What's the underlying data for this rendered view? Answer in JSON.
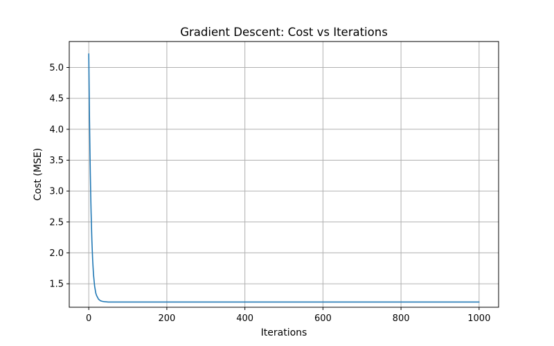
{
  "chart_data": {
    "type": "line",
    "title": "Gradient Descent: Cost vs Iterations",
    "xlabel": "Iterations",
    "ylabel": "Cost (MSE)",
    "xlim": [
      -50,
      1050
    ],
    "ylim": [
      1.12,
      5.42
    ],
    "grid": true,
    "x_ticks": [
      0,
      200,
      400,
      600,
      800,
      1000
    ],
    "x_tick_labels": [
      "0",
      "200",
      "400",
      "600",
      "800",
      "1000"
    ],
    "y_ticks": [
      1.5,
      2.0,
      2.5,
      3.0,
      3.5,
      4.0,
      4.5,
      5.0
    ],
    "y_tick_labels": [
      "1.5",
      "2.0",
      "2.5",
      "3.0",
      "3.5",
      "4.0",
      "4.5",
      "5.0"
    ],
    "series": [
      {
        "color": "#1f77b4",
        "x": [
          0,
          1,
          2,
          3,
          4,
          5,
          6,
          8,
          10,
          12,
          15,
          18,
          20,
          25,
          30,
          35,
          40,
          50,
          60,
          80,
          100,
          200,
          300,
          400,
          500,
          600,
          700,
          800,
          900,
          1000
        ],
        "y": [
          5.22,
          4.64,
          4.12,
          3.67,
          3.28,
          2.94,
          2.65,
          2.2,
          1.88,
          1.66,
          1.46,
          1.35,
          1.31,
          1.25,
          1.225,
          1.215,
          1.21,
          1.205,
          1.205,
          1.205,
          1.205,
          1.205,
          1.205,
          1.205,
          1.205,
          1.205,
          1.205,
          1.205,
          1.205,
          1.205
        ]
      }
    ]
  }
}
